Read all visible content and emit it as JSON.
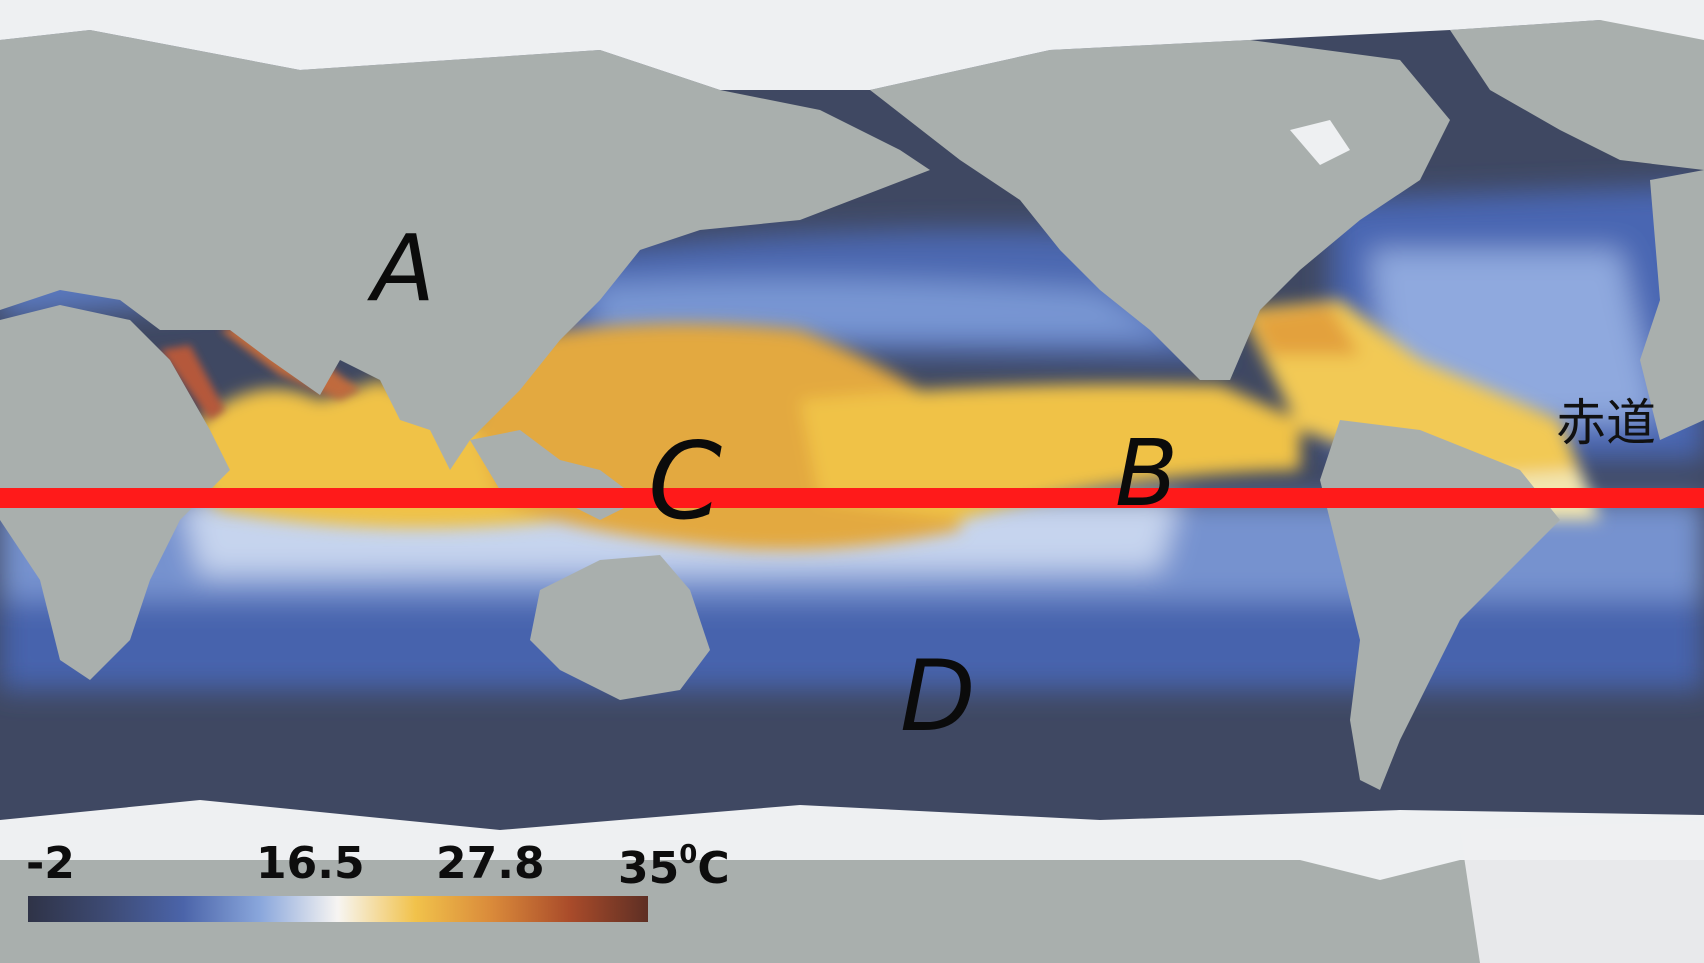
{
  "map": {
    "equator_label": "赤道",
    "point_labels": {
      "a": "A",
      "b": "B",
      "c": "C",
      "d": "D"
    },
    "colors": {
      "equator": "#ff1a1a",
      "land": "#a9afad",
      "ice": "#eef0f2",
      "cold_ocean": "#3b4460",
      "deep_blue": "#4462a8",
      "mid_blue": "#6f8fcc",
      "light_blue": "#c9d6ee",
      "warm_yellow": "#f0c247",
      "hot_orange": "#e3a93f",
      "hottest": "#b5583a"
    }
  },
  "legend": {
    "values": [
      "-2",
      "16.5",
      "27.8",
      "35"
    ],
    "unit_degree": "0",
    "unit_letter": "C",
    "gradient": [
      "#2f3347",
      "#3d4a73",
      "#4b64a9",
      "#8aa7dc",
      "#f7f5f2",
      "#f1c24b",
      "#d9893a",
      "#a94b2a",
      "#5e2f24"
    ]
  }
}
